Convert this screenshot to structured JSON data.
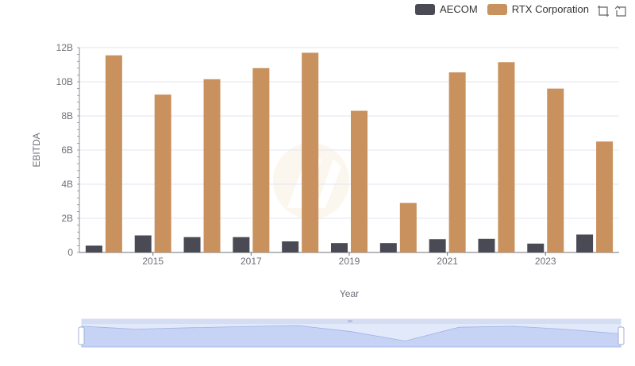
{
  "legend": {
    "items": [
      {
        "name": "AECOM",
        "color": "#4a4a55"
      },
      {
        "name": "RTX Corporation",
        "color": "#c9915e"
      }
    ]
  },
  "toolbox": {
    "icons": [
      "zoom-icon",
      "restore-icon"
    ]
  },
  "chart_data": {
    "type": "bar",
    "xlabel": "Year",
    "ylabel": "EBITDA",
    "categories": [
      2014,
      2015,
      2016,
      2017,
      2018,
      2019,
      2020,
      2021,
      2022,
      2023,
      2024
    ],
    "x_tick_labels": [
      "2015",
      "2017",
      "2019",
      "2021",
      "2023"
    ],
    "y_tick_labels": [
      "0",
      "2B",
      "4B",
      "6B",
      "8B",
      "10B",
      "12B"
    ],
    "ylim": [
      0,
      12000000000
    ],
    "grid": true,
    "legend_position": "top-right",
    "series": [
      {
        "name": "AECOM",
        "color": "#4a4a55",
        "values": [
          400000000,
          1000000000,
          900000000,
          900000000,
          650000000,
          550000000,
          550000000,
          780000000,
          800000000,
          520000000,
          1050000000
        ]
      },
      {
        "name": "RTX Corporation",
        "color": "#c9915e",
        "values": [
          11550000000,
          9250000000,
          10150000000,
          10800000000,
          11700000000,
          8300000000,
          2900000000,
          10550000000,
          11150000000,
          9600000000,
          6500000000
        ]
      }
    ]
  }
}
